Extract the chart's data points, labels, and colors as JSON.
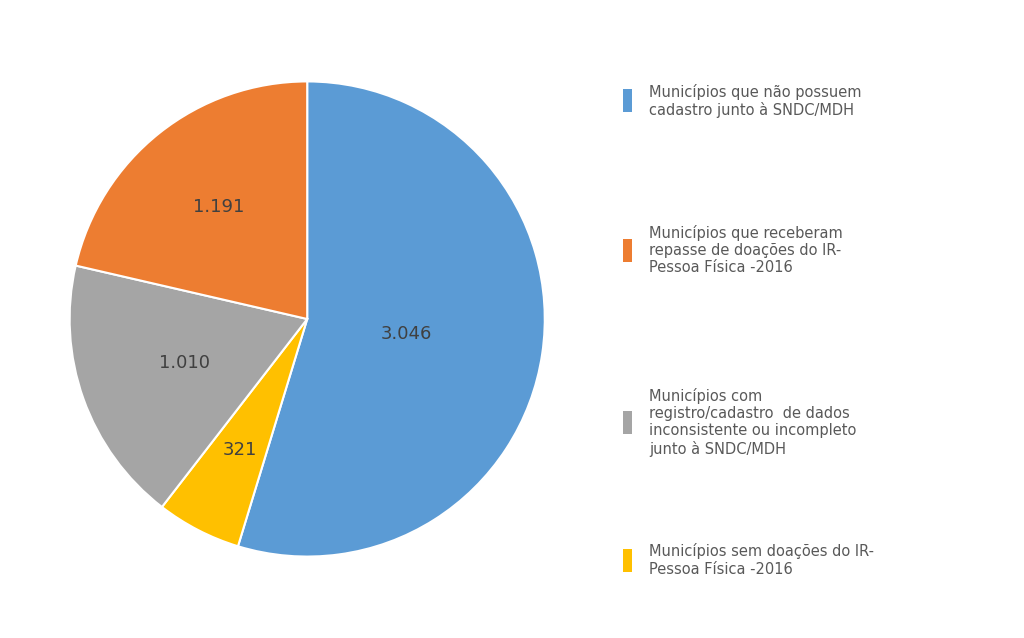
{
  "values": [
    3046,
    321,
    1010,
    1191
  ],
  "labels": [
    "3.046",
    "321",
    "1.010",
    "1.191"
  ],
  "colors": [
    "#5B9BD5",
    "#FFC000",
    "#A5A5A5",
    "#ED7D31"
  ],
  "legend_labels": [
    "Municípios que não possuem\ncadastro junto à SNDC/MDH",
    "Municípios que receberam\nrepasse de doações do IR-\nPessoa Física -2016",
    "Municípios com\nregistro/cadastro  de dados\ninconsistente ou incompleto\njunto à SNDC/MDH",
    "Municípios sem doações do IR-\nPessoa Física -2016"
  ],
  "legend_colors": [
    "#5B9BD5",
    "#ED7D31",
    "#A5A5A5",
    "#FFC000"
  ],
  "background_color": "#FFFFFF",
  "label_fontsize": 13,
  "legend_fontsize": 10.5,
  "startangle": 90
}
